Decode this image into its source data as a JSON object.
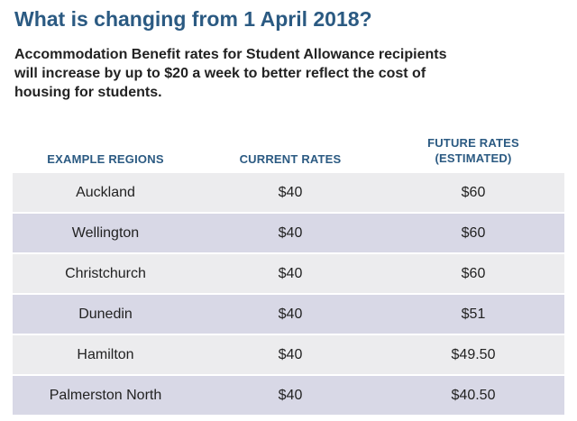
{
  "title": "What is changing from 1 April 2018?",
  "intro": {
    "line1": "Accommodation Benefit rates for Student Allowance recipients",
    "line2": "will increase by up to $20 a week to better reflect the cost of",
    "line3": "housing for students."
  },
  "table": {
    "headers": {
      "region": "EXAMPLE REGIONS",
      "current": "CURRENT RATES",
      "future_line1": "FUTURE RATES",
      "future_line2": "(ESTIMATED)"
    },
    "rows": [
      {
        "region": "Auckland",
        "current": "$40",
        "future": "$60"
      },
      {
        "region": "Wellington",
        "current": "$40",
        "future": "$60"
      },
      {
        "region": "Christchurch",
        "current": "$40",
        "future": "$60"
      },
      {
        "region": "Dunedin",
        "current": "$40",
        "future": "$51"
      },
      {
        "region": "Hamilton",
        "current": "$40",
        "future": "$49.50"
      },
      {
        "region": "Palmerston North",
        "current": "$40",
        "future": "$40.50"
      }
    ]
  },
  "colors": {
    "heading": "#2b5a82",
    "row_light": "#ececee",
    "row_dark": "#d8d8e6"
  }
}
